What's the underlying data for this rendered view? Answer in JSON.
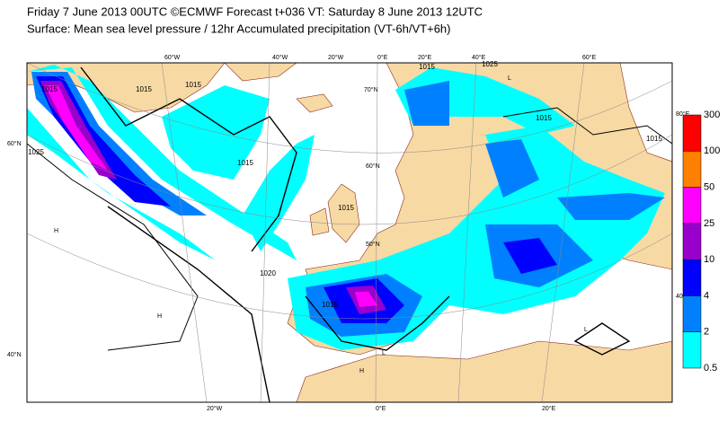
{
  "header": {
    "line1": "Friday 7 June 2013 00UTC ©ECMWF Forecast t+036 VT: Saturday 8 June 2013 12UTC",
    "line2": "Surface: Mean sea level pressure / 12hr Accumulated precipitation (VT-6h/VT+6h)"
  },
  "grid_labels": {
    "top": [
      "60°W",
      "40°W",
      "20°W",
      "0°E",
      "20°E",
      "40°E",
      "60°E"
    ],
    "left": [
      "60°N",
      "40°N"
    ],
    "bottom": [
      "20°W",
      "0°E",
      "20°E"
    ],
    "inner": [
      "70°N",
      "60°N",
      "50°N"
    ],
    "right": [
      "80°E",
      "40°N"
    ]
  },
  "isobar_labels": [
    "1015",
    "1015",
    "1015",
    "1020",
    "1015",
    "1015",
    "1015",
    "1025",
    "1015",
    "1015",
    "1025",
    "1015"
  ],
  "pressure_centres": [
    "H",
    "H",
    "L",
    "L",
    "H",
    "L"
  ],
  "colorbar": {
    "levels": [
      0.5,
      2,
      4,
      10,
      25,
      50,
      100,
      300
    ],
    "colors": [
      "#00ffff",
      "#0080ff",
      "#0000ff",
      "#9900cc",
      "#ff00ff",
      "#ff8000",
      "#ff0000"
    ]
  }
}
